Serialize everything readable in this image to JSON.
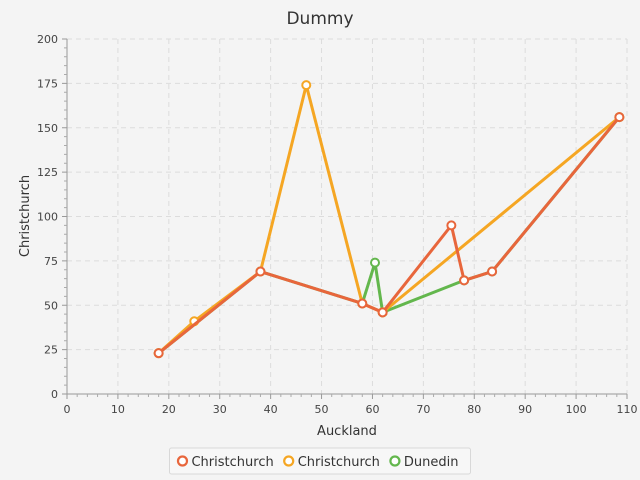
{
  "chart_data": {
    "type": "line",
    "title": "Dummy",
    "xlabel": "Auckland",
    "ylabel": "Christchurch",
    "xlim": [
      0,
      110
    ],
    "ylim": [
      0,
      200
    ],
    "xticks": [
      0,
      10,
      20,
      30,
      40,
      50,
      60,
      70,
      80,
      90,
      100,
      110
    ],
    "yticks": [
      0,
      25,
      50,
      75,
      100,
      125,
      150,
      175,
      200
    ],
    "grid": true,
    "legend_position": "bottom",
    "series": [
      {
        "name": "Christchurch",
        "color": "#e8663c",
        "points": [
          [
            18,
            23
          ],
          [
            38,
            69
          ],
          [
            58,
            51
          ],
          [
            62,
            46
          ],
          [
            75.5,
            95
          ],
          [
            78,
            64
          ],
          [
            83.5,
            69
          ],
          [
            108.5,
            156
          ]
        ]
      },
      {
        "name": "Christchurch",
        "color": "#f5a623",
        "points": [
          [
            18,
            23
          ],
          [
            25,
            41
          ],
          [
            38,
            69
          ],
          [
            47,
            174
          ],
          [
            58,
            51
          ],
          [
            62,
            46
          ],
          [
            108.5,
            156
          ]
        ]
      },
      {
        "name": "Dunedin",
        "color": "#63b74d",
        "points": [
          [
            18,
            23
          ],
          [
            38,
            69
          ],
          [
            58,
            51
          ],
          [
            60.5,
            74
          ],
          [
            62,
            46
          ],
          [
            78,
            64
          ],
          [
            83.5,
            69
          ],
          [
            108.5,
            156
          ]
        ]
      }
    ]
  }
}
